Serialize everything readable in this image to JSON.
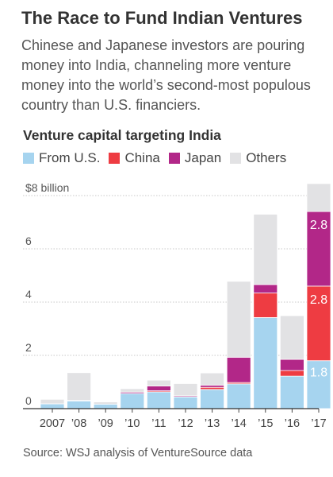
{
  "headline": "The Race to Fund Indian Ventures",
  "dek": "Chinese and Japanese investors are pouring money into India, channeling more venture money into the world’s second-most populous country than U.S. financiers.",
  "source": "Source: WSJ analysis of VentureSource data",
  "colors": {
    "us": "#a6d4ef",
    "china": "#ee3c42",
    "japan": "#b22788",
    "others": "#e2e2e4"
  },
  "chart_data": {
    "type": "bar",
    "stacked": true,
    "title": "Venture capital targeting India",
    "ylabel": "",
    "ylim": [
      0,
      8.5
    ],
    "y_ticks": [
      0,
      2,
      4,
      6,
      8
    ],
    "y_tick_labels": [
      "0",
      "2",
      "4",
      "6",
      "$8 billion"
    ],
    "categories": [
      "2007",
      "’08",
      "’09",
      "’10",
      "’11",
      "’12",
      "’13",
      "’14",
      "’15",
      "’16",
      "’17"
    ],
    "series": [
      {
        "name": "From U.S.",
        "key": "us",
        "values": [
          0.18,
          0.29,
          0.17,
          0.57,
          0.63,
          0.44,
          0.72,
          0.93,
          3.42,
          1.22,
          1.8
        ]
      },
      {
        "name": "China",
        "key": "china",
        "values": [
          0.0,
          0.0,
          0.0,
          0.0,
          0.04,
          0.0,
          0.08,
          0.05,
          0.92,
          0.21,
          2.8
        ]
      },
      {
        "name": "Japan",
        "key": "japan",
        "values": [
          0.0,
          0.02,
          0.0,
          0.05,
          0.18,
          0.04,
          0.08,
          0.95,
          0.32,
          0.42,
          2.8
        ]
      },
      {
        "name": "Others",
        "key": "others",
        "values": [
          0.17,
          1.04,
          0.08,
          0.13,
          0.22,
          0.46,
          0.46,
          2.85,
          2.64,
          1.64,
          1.05
        ]
      }
    ],
    "data_labels": [
      {
        "category": "’17",
        "series": "us",
        "text": "1.8"
      },
      {
        "category": "’17",
        "series": "china",
        "text": "2.8"
      },
      {
        "category": "’17",
        "series": "japan",
        "text": "2.8"
      }
    ],
    "legend_position": "top"
  }
}
